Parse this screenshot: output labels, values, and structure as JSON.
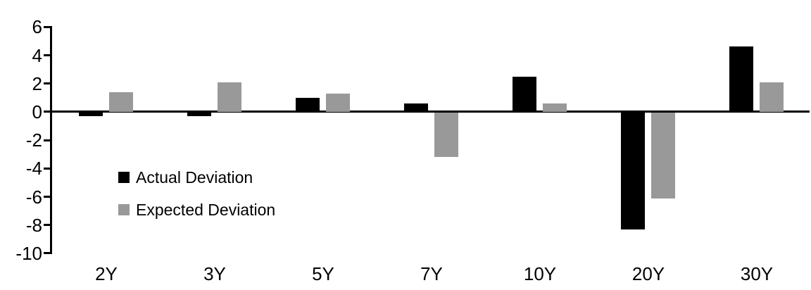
{
  "chart_data": {
    "type": "bar",
    "title": "",
    "xlabel": "",
    "ylabel": "",
    "categories": [
      "2Y",
      "3Y",
      "5Y",
      "7Y",
      "10Y",
      "20Y",
      "30Y"
    ],
    "series": [
      {
        "name": "Actual Deviation",
        "color": "#000000",
        "values": [
          -0.3,
          -0.3,
          1.0,
          0.6,
          2.5,
          -8.3,
          4.6
        ]
      },
      {
        "name": "Expected Deviation",
        "color": "#999999",
        "values": [
          1.4,
          2.1,
          1.3,
          -3.2,
          0.6,
          -6.1,
          2.1
        ]
      }
    ],
    "ylim": [
      -10,
      6
    ],
    "yticks": [
      6,
      4,
      2,
      0,
      -2,
      -4,
      -6,
      -8,
      -10
    ],
    "grid": false,
    "legend_position": "inside-left",
    "axis_color": "#000000",
    "background_color": "#ffffff"
  },
  "legend": {
    "items": [
      {
        "label": "Actual Deviation",
        "color": "#000000"
      },
      {
        "label": "Expected Deviation",
        "color": "#999999"
      }
    ]
  }
}
